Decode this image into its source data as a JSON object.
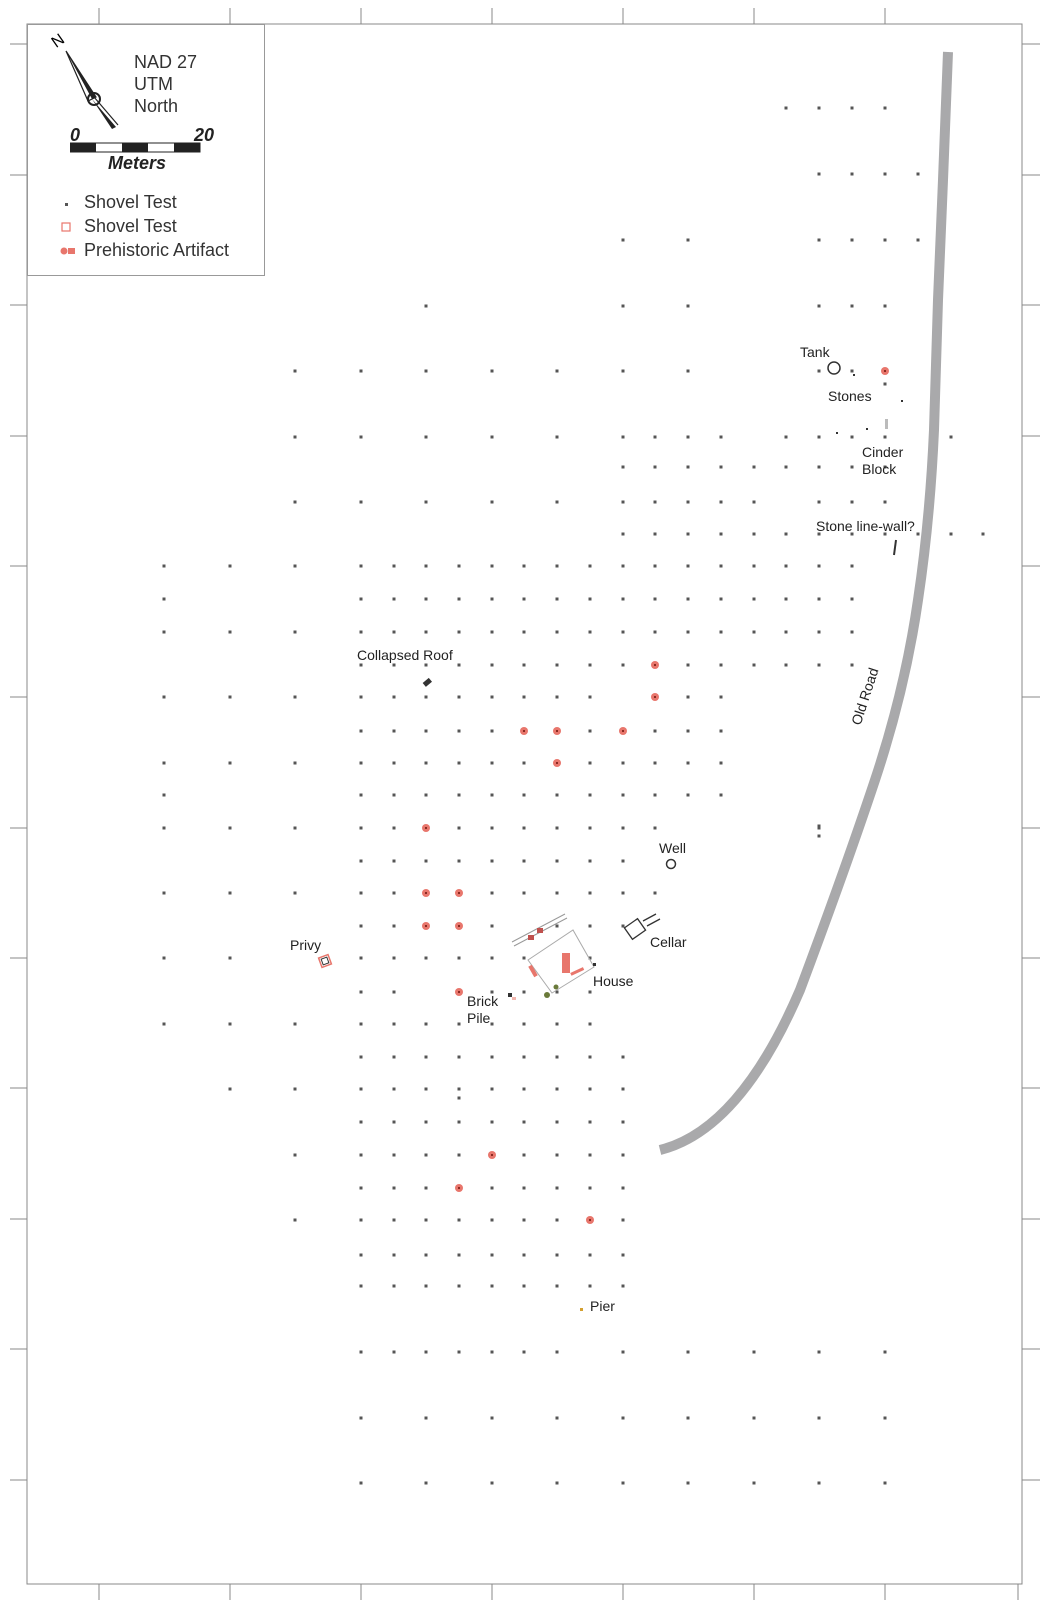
{
  "legend": {
    "datum": [
      "NAD 27",
      "UTM",
      "North"
    ],
    "north_letter": "N",
    "scale": {
      "zero": "0",
      "max": "20",
      "unit": "Meters"
    },
    "items": [
      {
        "label": "Shovel Test",
        "symbol": "small-dot",
        "color": "#555555"
      },
      {
        "label": "Shovel Test",
        "symbol": "open-square",
        "color": "#e8766c"
      },
      {
        "label": "Prehistoric Artifact",
        "symbol": "filled-circle",
        "color": "#e8766c"
      }
    ]
  },
  "features": {
    "tank": "Tank",
    "stones": "Stones",
    "cinder_block": [
      "Cinder",
      "Block"
    ],
    "stone_line": "Stone line-wall?",
    "collapsed_roof": "Collapsed Roof",
    "old_road": "Old Road",
    "well": "Well",
    "cellar": "Cellar",
    "privy": "Privy",
    "house": "House",
    "brick_pile": [
      "Brick",
      "Pile"
    ],
    "pier": "Pier"
  },
  "colors": {
    "artifact": "#e8766c",
    "road": "#a9a9ab",
    "shovel_test": "#555555",
    "frame": "#888888"
  }
}
